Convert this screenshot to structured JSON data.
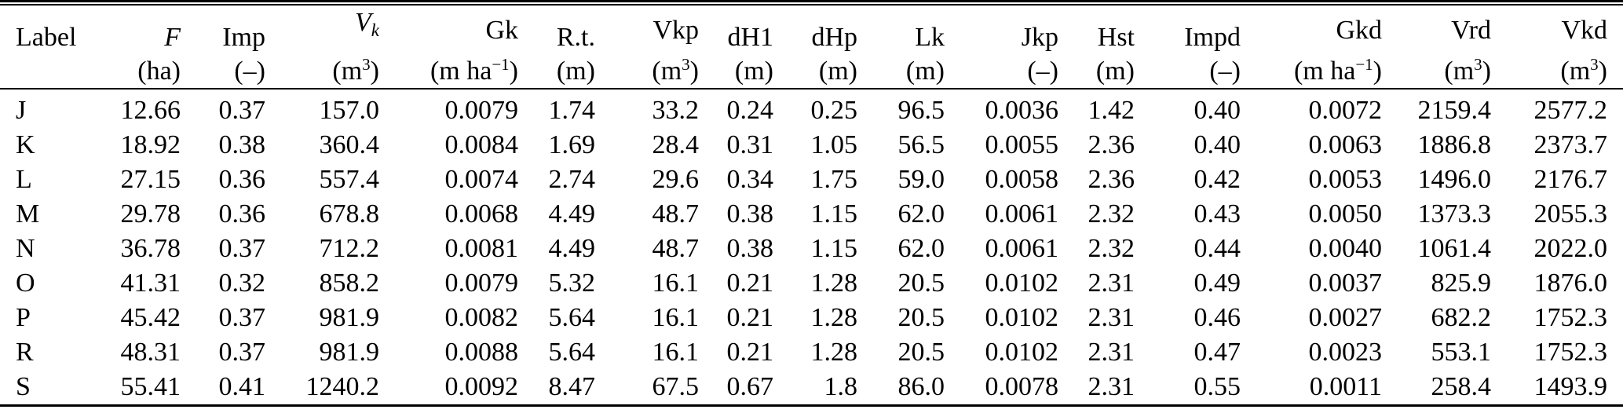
{
  "page": {
    "background": "#ffffff",
    "text_color": "#000000"
  },
  "table": {
    "columns": [
      {
        "name": "Label",
        "unit": "",
        "align": "left",
        "head": [
          [
            "r",
            "Label"
          ]
        ],
        "unitSpec": []
      },
      {
        "name": "F",
        "unit": "(ha)",
        "align": "right",
        "head": [
          [
            "i",
            "F"
          ]
        ],
        "unitSpec": [
          [
            "r",
            "(ha)"
          ]
        ]
      },
      {
        "name": "Imp",
        "unit": "(–)",
        "align": "right",
        "head": [
          [
            "r",
            "Imp"
          ]
        ],
        "unitSpec": [
          [
            "r",
            "(–)"
          ]
        ]
      },
      {
        "name": "Vk",
        "unit": "(m³)",
        "align": "right",
        "head": [
          [
            "i",
            "V"
          ],
          [
            "is",
            "k"
          ]
        ],
        "unitSpec": [
          [
            "r",
            "(m"
          ],
          [
            "s",
            "3"
          ],
          [
            "r",
            ")"
          ]
        ]
      },
      {
        "name": "Gk",
        "unit": "(m ha⁻¹)",
        "align": "right",
        "head": [
          [
            "r",
            "Gk"
          ]
        ],
        "unitSpec": [
          [
            "r",
            "(m ha"
          ],
          [
            "s",
            "−1"
          ],
          [
            "r",
            ")"
          ]
        ]
      },
      {
        "name": "R.t.",
        "unit": "(m)",
        "align": "right",
        "head": [
          [
            "r",
            "R.t."
          ]
        ],
        "unitSpec": [
          [
            "r",
            "(m)"
          ]
        ]
      },
      {
        "name": "Vkp",
        "unit": "(m³)",
        "align": "right",
        "head": [
          [
            "r",
            "Vkp"
          ]
        ],
        "unitSpec": [
          [
            "r",
            "(m"
          ],
          [
            "s",
            "3"
          ],
          [
            "r",
            ")"
          ]
        ]
      },
      {
        "name": "dH1",
        "unit": "(m)",
        "align": "right",
        "head": [
          [
            "r",
            "dH1"
          ]
        ],
        "unitSpec": [
          [
            "r",
            "(m)"
          ]
        ]
      },
      {
        "name": "dHp",
        "unit": "(m)",
        "align": "right",
        "head": [
          [
            "r",
            "dHp"
          ]
        ],
        "unitSpec": [
          [
            "r",
            "(m)"
          ]
        ]
      },
      {
        "name": "Lk",
        "unit": "(m)",
        "align": "right",
        "head": [
          [
            "r",
            "Lk"
          ]
        ],
        "unitSpec": [
          [
            "r",
            "(m)"
          ]
        ]
      },
      {
        "name": "Jkp",
        "unit": "(–)",
        "align": "right",
        "head": [
          [
            "r",
            "Jkp"
          ]
        ],
        "unitSpec": [
          [
            "r",
            "(–)"
          ]
        ]
      },
      {
        "name": "Hst",
        "unit": "(m)",
        "align": "right",
        "head": [
          [
            "r",
            "Hst"
          ]
        ],
        "unitSpec": [
          [
            "r",
            "(m)"
          ]
        ]
      },
      {
        "name": "Impd",
        "unit": "(–)",
        "align": "right",
        "head": [
          [
            "r",
            "Impd"
          ]
        ],
        "unitSpec": [
          [
            "r",
            "(–)"
          ]
        ]
      },
      {
        "name": "Gkd",
        "unit": "(m ha⁻¹)",
        "align": "right",
        "head": [
          [
            "r",
            "Gkd"
          ]
        ],
        "unitSpec": [
          [
            "r",
            "(m ha"
          ],
          [
            "s",
            "−1"
          ],
          [
            "r",
            ")"
          ]
        ]
      },
      {
        "name": "Vrd",
        "unit": "(m³)",
        "align": "right",
        "head": [
          [
            "r",
            "Vrd"
          ]
        ],
        "unitSpec": [
          [
            "r",
            "(m"
          ],
          [
            "s",
            "3"
          ],
          [
            "r",
            ")"
          ]
        ]
      },
      {
        "name": "Vkd",
        "unit": "(m³)",
        "align": "right",
        "head": [
          [
            "r",
            "Vkd"
          ]
        ],
        "unitSpec": [
          [
            "r",
            "(m"
          ],
          [
            "s",
            "3"
          ],
          [
            "r",
            ")"
          ]
        ]
      }
    ],
    "rows": [
      [
        "J",
        "12.66",
        "0.37",
        "157.0",
        "0.0079",
        "1.74",
        "33.2",
        "0.24",
        "0.25",
        "96.5",
        "0.0036",
        "1.42",
        "0.40",
        "0.0072",
        "2159.4",
        "2577.2"
      ],
      [
        "K",
        "18.92",
        "0.38",
        "360.4",
        "0.0084",
        "1.69",
        "28.4",
        "0.31",
        "1.05",
        "56.5",
        "0.0055",
        "2.36",
        "0.40",
        "0.0063",
        "1886.8",
        "2373.7"
      ],
      [
        "L",
        "27.15",
        "0.36",
        "557.4",
        "0.0074",
        "2.74",
        "29.6",
        "0.34",
        "1.75",
        "59.0",
        "0.0058",
        "2.36",
        "0.42",
        "0.0053",
        "1496.0",
        "2176.7"
      ],
      [
        "M",
        "29.78",
        "0.36",
        "678.8",
        "0.0068",
        "4.49",
        "48.7",
        "0.38",
        "1.15",
        "62.0",
        "0.0061",
        "2.32",
        "0.43",
        "0.0050",
        "1373.3",
        "2055.3"
      ],
      [
        "N",
        "36.78",
        "0.37",
        "712.2",
        "0.0081",
        "4.49",
        "48.7",
        "0.38",
        "1.15",
        "62.0",
        "0.0061",
        "2.32",
        "0.44",
        "0.0040",
        "1061.4",
        "2022.0"
      ],
      [
        "O",
        "41.31",
        "0.32",
        "858.2",
        "0.0079",
        "5.32",
        "16.1",
        "0.21",
        "1.28",
        "20.5",
        "0.0102",
        "2.31",
        "0.49",
        "0.0037",
        "825.9",
        "1876.0"
      ],
      [
        "P",
        "45.42",
        "0.37",
        "981.9",
        "0.0082",
        "5.64",
        "16.1",
        "0.21",
        "1.28",
        "20.5",
        "0.0102",
        "2.31",
        "0.46",
        "0.0027",
        "682.2",
        "1752.3"
      ],
      [
        "R",
        "48.31",
        "0.37",
        "981.9",
        "0.0088",
        "5.64",
        "16.1",
        "0.21",
        "1.28",
        "20.5",
        "0.0102",
        "2.31",
        "0.47",
        "0.0023",
        "553.1",
        "1752.3"
      ],
      [
        "S",
        "55.41",
        "0.41",
        "1240.2",
        "0.0092",
        "8.47",
        "67.5",
        "0.67",
        "1.8",
        "86.0",
        "0.0078",
        "2.31",
        "0.55",
        "0.0011",
        "258.4",
        "1493.9"
      ]
    ]
  }
}
